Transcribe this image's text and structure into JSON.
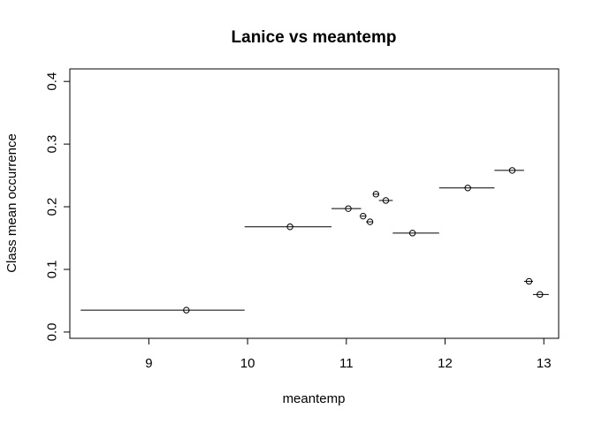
{
  "chart_data": {
    "type": "scatter",
    "title": "Lanice vs meantemp",
    "xlabel": "meantemp",
    "ylabel": "Class mean occurrence",
    "xlim": [
      8.2,
      13.15
    ],
    "ylim": [
      -0.01,
      0.42
    ],
    "x_ticks": [
      9,
      10,
      11,
      12,
      13
    ],
    "y_ticks": [
      0.0,
      0.1,
      0.2,
      0.3,
      0.4
    ],
    "x_tick_labels": [
      "9",
      "10",
      "11",
      "12",
      "13"
    ],
    "y_tick_labels": [
      "0.0",
      "0.1",
      "0.2",
      "0.3",
      "0.4"
    ],
    "grid": false,
    "legend": "none",
    "point_style": "open-circle",
    "points": [
      {
        "x": 9.38,
        "y": 0.035,
        "x_start": 8.31,
        "x_end": 9.97
      },
      {
        "x": 10.43,
        "y": 0.168,
        "x_start": 9.97,
        "x_end": 10.85
      },
      {
        "x": 11.02,
        "y": 0.197,
        "x_start": 10.85,
        "x_end": 11.15
      },
      {
        "x": 11.17,
        "y": 0.185,
        "x_start": 11.15,
        "x_end": 11.2
      },
      {
        "x": 11.24,
        "y": 0.176,
        "x_start": 11.2,
        "x_end": 11.27
      },
      {
        "x": 11.3,
        "y": 0.22,
        "x_start": 11.27,
        "x_end": 11.33
      },
      {
        "x": 11.4,
        "y": 0.21,
        "x_start": 11.33,
        "x_end": 11.47
      },
      {
        "x": 11.67,
        "y": 0.158,
        "x_start": 11.47,
        "x_end": 11.94
      },
      {
        "x": 12.23,
        "y": 0.23,
        "x_start": 11.94,
        "x_end": 12.5
      },
      {
        "x": 12.68,
        "y": 0.258,
        "x_start": 12.5,
        "x_end": 12.8
      },
      {
        "x": 12.85,
        "y": 0.081,
        "x_start": 12.8,
        "x_end": 12.89
      },
      {
        "x": 12.96,
        "y": 0.06,
        "x_start": 12.89,
        "x_end": 13.05
      }
    ]
  }
}
